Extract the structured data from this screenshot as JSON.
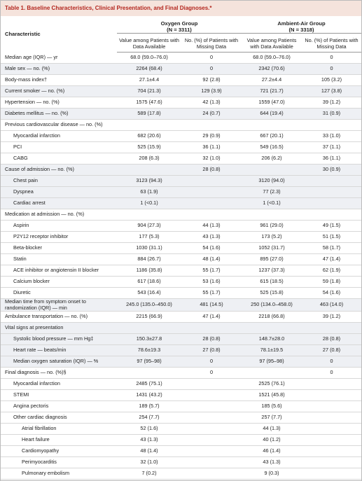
{
  "title": "Table 1. Baseline Characteristics, Clinical Presentation, and Final Diagnoses.*",
  "header": {
    "characteristic": "Characteristic",
    "groups": [
      {
        "name": "Oxygen Group",
        "n": "(N = 3311)",
        "subheaders": [
          "Value among Patients with Data Available",
          "No. (%) of Patients with Missing Data"
        ]
      },
      {
        "name": "Ambient-Air Group",
        "n": "(N = 3318)",
        "subheaders": [
          "Value among Patients with Data Available",
          "No. (%) of Patients with Missing Data"
        ]
      }
    ]
  },
  "table": {
    "rows": [
      {
        "label": "Median age (IQR) — yr",
        "cells": [
          "68.0 (59.0–76.0)",
          "0",
          "68.0 (59.0–76.0)",
          "0"
        ]
      },
      {
        "label": "Male sex — no. (%)",
        "cells": [
          "2264 (68.4)",
          "0",
          "2342 (70.6)",
          "0"
        ]
      },
      {
        "label": "Body-mass index†",
        "cells": [
          "27.1±4.4",
          "92 (2.8)",
          "27.2±4.4",
          "105 (3.2)"
        ]
      },
      {
        "label": "Current smoker — no. (%)",
        "cells": [
          "704 (21.3)",
          "129 (3.9)",
          "721 (21.7)",
          "127 (3.8)"
        ]
      },
      {
        "label": "Hypertension — no. (%)",
        "cells": [
          "1575 (47.6)",
          "42 (1.3)",
          "1559 (47.0)",
          "39 (1.2)"
        ]
      },
      {
        "label": "Diabetes mellitus — no. (%)",
        "cells": [
          "589 (17.8)",
          "24 (0.7)",
          "644 (19.4)",
          "31 (0.9)"
        ]
      },
      {
        "label": "Previous cardiovascular disease — no. (%)",
        "cells": [
          null,
          null,
          null,
          null
        ],
        "subrows": [
          {
            "label": "Myocardial infarction",
            "cells": [
              "682 (20.6)",
              "29 (0.9)",
              "667 (20.1)",
              "33 (1.0)"
            ]
          },
          {
            "label": "PCI",
            "cells": [
              "525 (15.9)",
              "36 (1.1)",
              "549 (16.5)",
              "37 (1.1)"
            ]
          },
          {
            "label": "CABG",
            "cells": [
              "208 (6.3)",
              "32 (1.0)",
              "206 (6.2)",
              "36 (1.1)"
            ]
          }
        ]
      },
      {
        "label": "Cause of admission — no. (%)",
        "cells": [
          null,
          "28 (0.8)",
          null,
          "30 (0.9)"
        ],
        "subrows": [
          {
            "label": "Chest pain",
            "cells": [
              "3123 (94.3)",
              null,
              "3120 (94.0)",
              null
            ]
          },
          {
            "label": "Dyspnea",
            "cells": [
              "63 (1.9)",
              null,
              "77 (2.3)",
              null
            ]
          },
          {
            "label": "Cardiac arrest",
            "cells": [
              "1 (<0.1)",
              null,
              "1 (<0.1)",
              null
            ]
          }
        ]
      },
      {
        "label": "Medication at admission — no. (%)",
        "cells": [
          null,
          null,
          null,
          null
        ],
        "subrows": [
          {
            "label": "Aspirin",
            "cells": [
              "904 (27.3)",
              "44 (1.3)",
              "961 (29.0)",
              "49 (1.5)"
            ]
          },
          {
            "label": "P2Y12 receptor inhibitor",
            "cells": [
              "177 (5.3)",
              "43 (1.3)",
              "173 (5.2)",
              "51 (1.5)"
            ]
          },
          {
            "label": "Beta-blocker",
            "cells": [
              "1030 (31.1)",
              "54 (1.6)",
              "1052 (31.7)",
              "58 (1.7)"
            ]
          },
          {
            "label": "Statin",
            "cells": [
              "884 (26.7)",
              "48 (1.4)",
              "895 (27.0)",
              "47 (1.4)"
            ]
          },
          {
            "label": "ACE inhibitor or angiotensin II blocker",
            "cells": [
              "1186 (35.8)",
              "55 (1.7)",
              "1237 (37.3)",
              "62 (1.9)"
            ]
          },
          {
            "label": "Calcium blocker",
            "cells": [
              "617 (18.6)",
              "53 (1.6)",
              "615 (18.5)",
              "59 (1.8)"
            ]
          },
          {
            "label": "Diuretic",
            "cells": [
              "543 (16.4)",
              "55 (1.7)",
              "525 (15.8)",
              "54 (1.6)"
            ]
          }
        ]
      },
      {
        "label": "Median time from symptom onset to randomization (IQR) — min",
        "cells": [
          "245.0 (135.0–450.0)",
          "481 (14.5)",
          "250 (134.0–458.0)",
          "463 (14.0)"
        ]
      },
      {
        "label": "Ambulance transportation — no. (%)",
        "cells": [
          "2215 (66.9)",
          "47 (1.4)",
          "2218 (66.8)",
          "39 (1.2)"
        ]
      },
      {
        "label": "Vital signs at presentation",
        "cells": [
          null,
          null,
          null,
          null
        ],
        "subrows": [
          {
            "label": "Systolic blood pressure — mm Hg‡",
            "cells": [
              "150.3±27.8",
              "28 (0.8)",
              "148.7±28.0",
              "28 (0.8)"
            ]
          },
          {
            "label": "Heart rate — beats/min",
            "cells": [
              "78.6±19.3",
              "27 (0.8)",
              "78.1±19.5",
              "27 (0.8)"
            ]
          },
          {
            "label": "Median oxygen saturation (IQR) — %",
            "cells": [
              "97 (95–98)",
              "0",
              "97 (95–98)",
              "0"
            ]
          }
        ]
      },
      {
        "label": "Final diagnosis — no. (%)§",
        "cells": [
          null,
          "0",
          null,
          "0"
        ],
        "subrows": [
          {
            "label": "Myocardial infarction",
            "cells": [
              "2485 (75.1)",
              null,
              "2525 (76.1)",
              null
            ]
          },
          {
            "label": "STEMI",
            "cells": [
              "1431 (43.2)",
              null,
              "1521 (45.8)",
              null
            ]
          },
          {
            "label": "Angina pectoris",
            "cells": [
              "189 (5.7)",
              null,
              "185 (5.6)",
              null
            ]
          },
          {
            "label": "Other cardiac diagnosis",
            "cells": [
              "254 (7.7)",
              null,
              "257 (7.7)",
              null
            ],
            "subrows": [
              {
                "label": "Atrial fibrillation",
                "cells": [
                  "52 (1.6)",
                  null,
                  "44 (1.3)",
                  null
                ]
              },
              {
                "label": "Heart failure",
                "cells": [
                  "43 (1.3)",
                  null,
                  "40 (1.2)",
                  null
                ]
              },
              {
                "label": "Cardiomyopathy",
                "cells": [
                  "48 (1.4)",
                  null,
                  "46 (1.4)",
                  null
                ]
              },
              {
                "label": "Perimyocarditis",
                "cells": [
                  "32 (1.0)",
                  null,
                  "43 (1.3)",
                  null
                ]
              },
              {
                "label": "Pulmonary embolism",
                "cells": [
                  "7 (0.2)",
                  null,
                  "9 (0.3)",
                  null
                ]
              }
            ]
          }
        ]
      }
    ]
  }
}
